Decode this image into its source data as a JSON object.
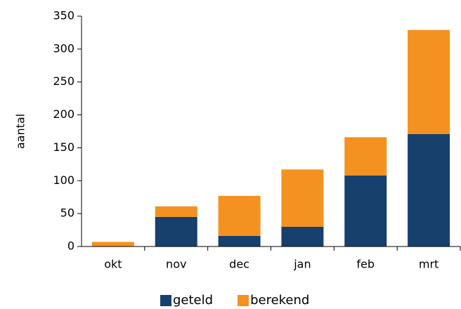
{
  "chart_data": {
    "type": "stacked_bar",
    "y_label": "aantal",
    "categories": [
      "okt",
      "nov",
      "dec",
      "jan",
      "feb",
      "mrt"
    ],
    "series": [
      {
        "name": "geteld",
        "color": "#17406d",
        "values": [
          0,
          45,
          16,
          30,
          108,
          171
        ]
      },
      {
        "name": "berekend",
        "color": "#f39220",
        "values": [
          7,
          16,
          61,
          87,
          58,
          158
        ]
      }
    ],
    "ylim": [
      0,
      350
    ],
    "yticks": [
      0,
      50,
      100,
      150,
      200,
      250,
      300,
      350
    ],
    "grid": false,
    "legend": "bottom"
  }
}
